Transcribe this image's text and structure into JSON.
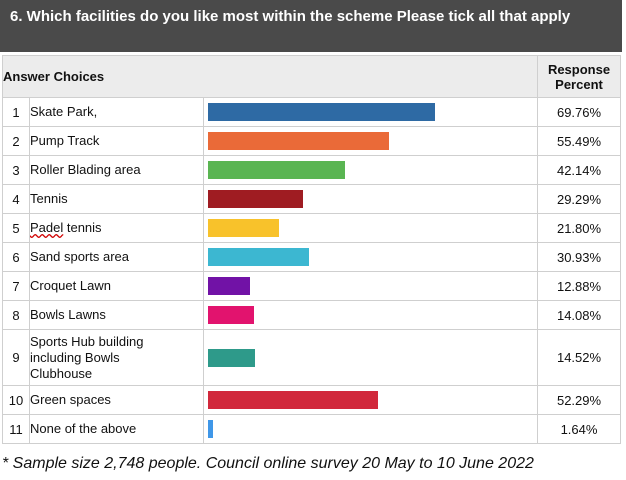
{
  "title": "6. Which facilities do you like most within the scheme Please tick all that apply",
  "header": {
    "choices_label": "Answer Choices",
    "percent_label_line1": "Response",
    "percent_label_line2": "Percent"
  },
  "chart_data": {
    "type": "bar",
    "orientation": "horizontal",
    "xlim": [
      0,
      100
    ],
    "categories": [
      "Skate Park,",
      "Pump Track",
      "Roller Blading area",
      "Tennis",
      "Padel tennis",
      "Sand sports area",
      "Croquet Lawn",
      "Bowls Lawns",
      "Sports Hub building including Bowls Clubhouse",
      "Green spaces",
      "None of the above"
    ],
    "values": [
      69.76,
      55.49,
      42.14,
      29.29,
      21.8,
      30.93,
      12.88,
      14.08,
      14.52,
      52.29,
      1.64
    ],
    "value_labels": [
      "69.76%",
      "55.49%",
      "42.14%",
      "29.29%",
      "21.80%",
      "30.93%",
      "12.88%",
      "14.08%",
      "14.52%",
      "52.29%",
      "1.64%"
    ],
    "row_numbers": [
      "1",
      "2",
      "3",
      "4",
      "5",
      "6",
      "7",
      "8",
      "9",
      "10",
      "11"
    ],
    "colors": [
      "#2e6aa4",
      "#ea6a38",
      "#5ab552",
      "#9f1c22",
      "#f8c22b",
      "#3cb7d1",
      "#7112a6",
      "#e2136e",
      "#2e9a8a",
      "#d1283b",
      "#3f97e8"
    ]
  },
  "footnote": "* Sample size 2,748 people. Council online survey 20 May to 10 June 2022"
}
